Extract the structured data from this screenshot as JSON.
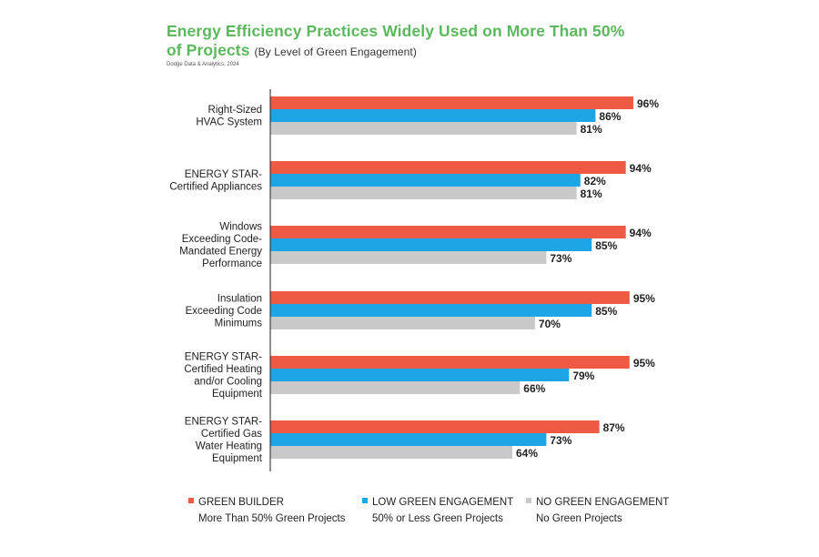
{
  "colors": {
    "title": "#5cb85c",
    "green_builder": "#ef5a45",
    "low_green": "#1ea5e5",
    "no_green": "#c9c9c9",
    "axis": "#222222",
    "text": "#222222"
  },
  "title": {
    "main_line1": "Energy Efficiency Practices Widely Used on More Than 50%",
    "main_line2": "of Projects",
    "subtitle": "(By Level of Green Engagement)"
  },
  "source": "Dodge Data & Analytics, 2024",
  "chart_data": {
    "type": "bar",
    "orientation": "horizontal",
    "xlim": [
      0,
      100
    ],
    "grid": false,
    "categories": [
      [
        "Right-Sized",
        "HVAC System"
      ],
      [
        "ENERGY STAR-",
        "Certified Appliances"
      ],
      [
        "Windows",
        "Exceeding Code-",
        "Mandated Energy",
        "Performance"
      ],
      [
        "Insulation",
        "Exceeding Code",
        "Minimums"
      ],
      [
        "ENERGY STAR-",
        "Certified Heating",
        "and/or Cooling",
        "Equipment"
      ],
      [
        "ENERGY STAR-",
        "Certified Gas",
        "Water Heating",
        "Equipment"
      ]
    ],
    "series": [
      {
        "name": "GREEN BUILDER",
        "description": "More Than 50% Green Projects",
        "color_key": "green_builder",
        "values": [
          96,
          94,
          94,
          95,
          95,
          87
        ]
      },
      {
        "name": "LOW GREEN ENGAGEMENT",
        "description": "50% or Less Green Projects",
        "color_key": "low_green",
        "values": [
          86,
          82,
          85,
          85,
          79,
          73
        ]
      },
      {
        "name": "NO GREEN ENGAGEMENT",
        "description": "No Green Projects",
        "color_key": "no_green",
        "values": [
          81,
          81,
          73,
          70,
          66,
          64
        ]
      }
    ],
    "value_suffix": "%",
    "legend_position": "bottom"
  }
}
